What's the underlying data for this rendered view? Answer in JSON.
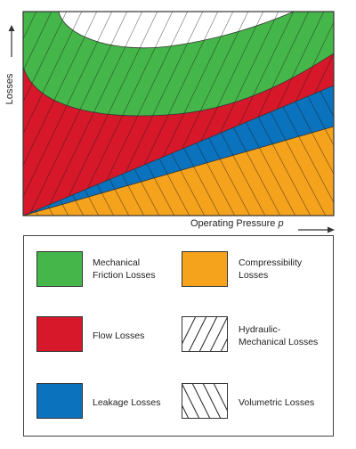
{
  "axes": {
    "y_label": "Losses",
    "x_label": "Operating Pressure",
    "x_symbol": "p"
  },
  "legend": [
    {
      "label": "Mechanical\nFriction Losses",
      "color": "#45b649",
      "pattern": "solid"
    },
    {
      "label": "Compressibility\nLosses",
      "color": "#f5a21c",
      "pattern": "solid"
    },
    {
      "label": "Flow Losses",
      "color": "#d7182a",
      "pattern": "solid"
    },
    {
      "label": "Hydraulic-\nMechanical Losses",
      "color": "#ffffff",
      "pattern": "hatch-forward"
    },
    {
      "label": "Leakage Losses",
      "color": "#0b72bd",
      "pattern": "solid"
    },
    {
      "label": "Volumetric Losses",
      "color": "#ffffff",
      "pattern": "hatch-backward"
    }
  ],
  "colors": {
    "mechanical_friction": "#45b649",
    "flow": "#d7182a",
    "leakage": "#0b72bd",
    "compressibility": "#f5a21c"
  }
}
